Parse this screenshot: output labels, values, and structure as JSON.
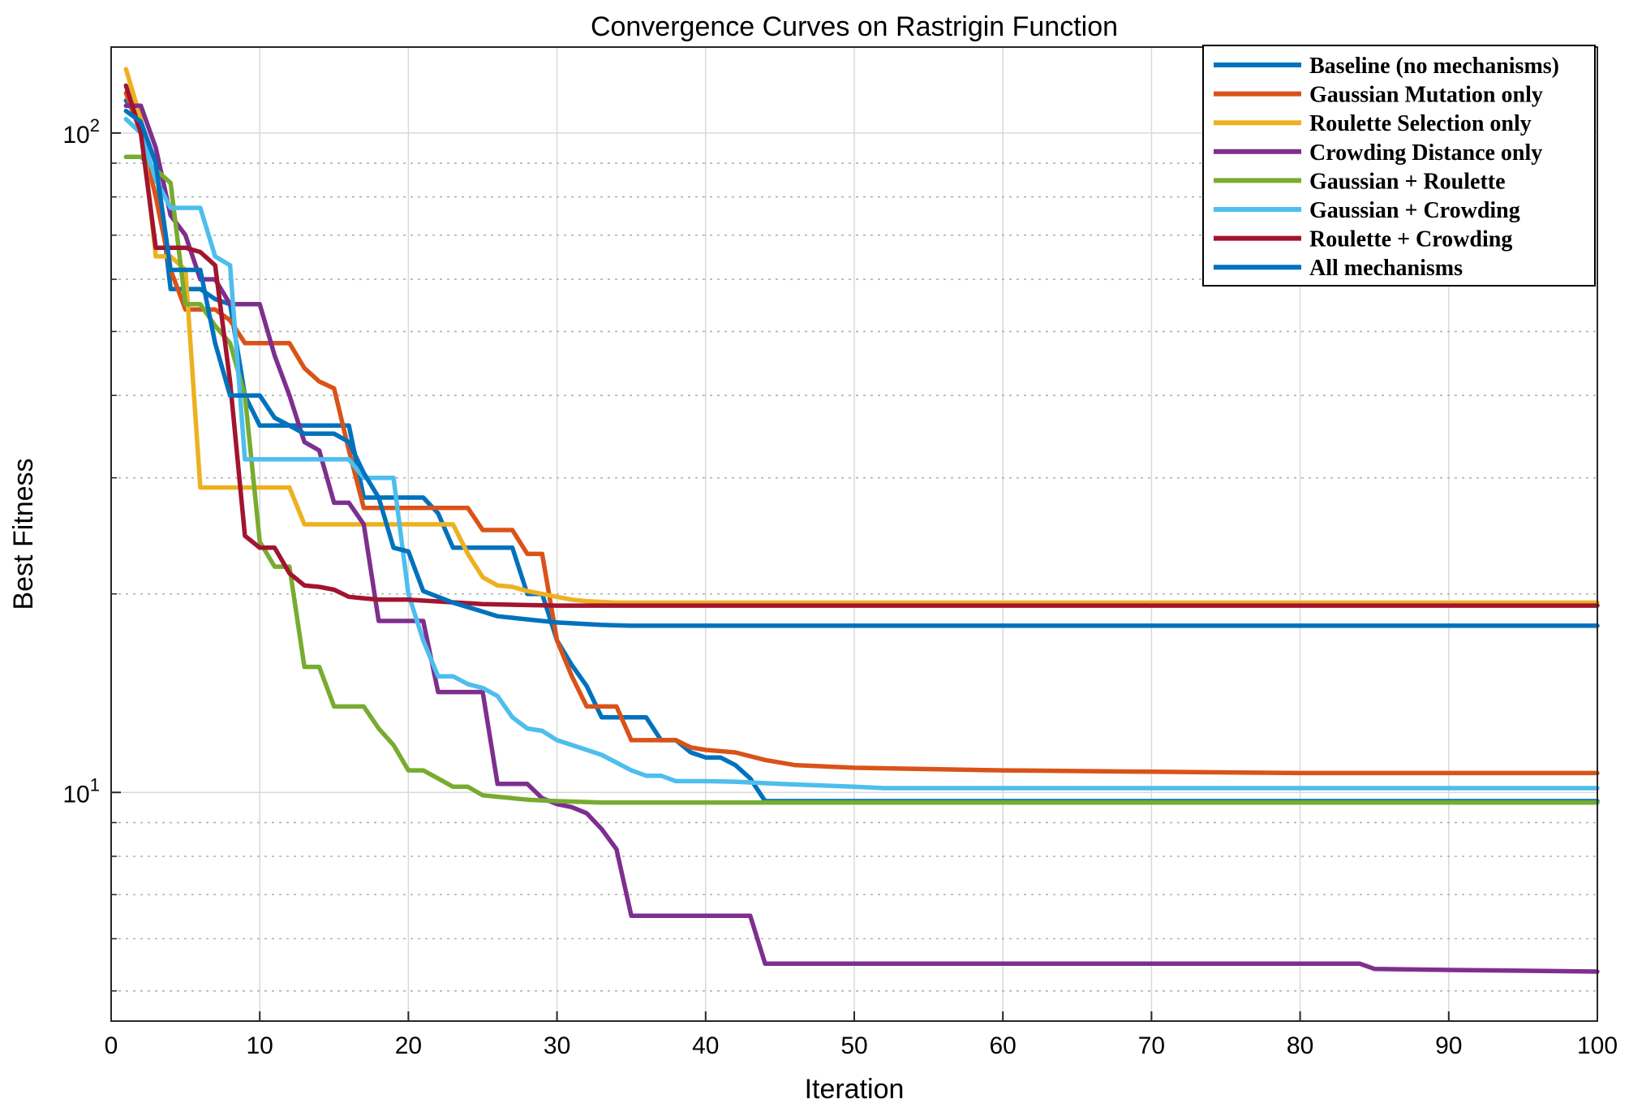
{
  "chart_data": {
    "type": "line",
    "title": "Convergence Curves on Rastrigin Function",
    "xlabel": "Iteration",
    "ylabel": "Best Fitness",
    "xlim": [
      0,
      100
    ],
    "ylim": [
      4.5,
      135
    ],
    "yscale": "log",
    "grid": true,
    "legend_position": "top-right",
    "x_ticks": [
      0,
      10,
      20,
      30,
      40,
      50,
      60,
      70,
      80,
      90,
      100
    ],
    "y_ticks": [
      {
        "value": 10,
        "base": "10",
        "exp": "1"
      },
      {
        "value": 100,
        "base": "10",
        "exp": "2"
      }
    ],
    "series": [
      {
        "name": "Baseline (no mechanisms)",
        "color": "#0072BD",
        "points": [
          [
            1,
            112
          ],
          [
            2,
            104
          ],
          [
            3,
            90
          ],
          [
            4,
            58
          ],
          [
            5,
            58
          ],
          [
            6,
            58
          ],
          [
            7,
            56
          ],
          [
            8,
            55
          ],
          [
            9,
            40
          ],
          [
            10,
            36
          ],
          [
            11,
            36
          ],
          [
            12,
            36
          ],
          [
            13,
            36
          ],
          [
            14,
            36
          ],
          [
            15,
            36
          ],
          [
            16,
            36
          ],
          [
            17,
            28
          ],
          [
            18,
            28
          ],
          [
            19,
            28
          ],
          [
            20,
            28
          ],
          [
            21,
            28
          ],
          [
            22,
            26.5
          ],
          [
            23,
            23.5
          ],
          [
            24,
            23.5
          ],
          [
            25,
            23.5
          ],
          [
            26,
            23.5
          ],
          [
            27,
            23.5
          ],
          [
            28,
            20
          ],
          [
            29,
            20
          ],
          [
            30,
            17
          ],
          [
            31,
            15.6
          ],
          [
            32,
            14.5
          ],
          [
            33,
            13
          ],
          [
            34,
            13
          ],
          [
            35,
            13
          ],
          [
            36,
            13
          ],
          [
            37,
            12
          ],
          [
            38,
            12
          ],
          [
            39,
            11.5
          ],
          [
            40,
            11.3
          ],
          [
            41,
            11.3
          ],
          [
            42,
            11
          ],
          [
            43,
            10.5
          ],
          [
            44,
            9.7
          ],
          [
            50,
            9.7
          ],
          [
            100,
            9.7
          ]
        ]
      },
      {
        "name": "Gaussian Mutation only",
        "color": "#D95319",
        "points": [
          [
            1,
            115
          ],
          [
            2,
            100
          ],
          [
            3,
            80
          ],
          [
            4,
            62
          ],
          [
            5,
            54
          ],
          [
            6,
            54
          ],
          [
            7,
            54
          ],
          [
            8,
            52
          ],
          [
            9,
            48
          ],
          [
            10,
            48
          ],
          [
            11,
            48
          ],
          [
            12,
            48
          ],
          [
            13,
            44
          ],
          [
            14,
            42
          ],
          [
            15,
            41
          ],
          [
            16,
            33
          ],
          [
            17,
            27
          ],
          [
            18,
            27
          ],
          [
            19,
            27
          ],
          [
            20,
            27
          ],
          [
            21,
            27
          ],
          [
            22,
            27
          ],
          [
            23,
            27
          ],
          [
            24,
            27
          ],
          [
            25,
            25
          ],
          [
            26,
            25
          ],
          [
            27,
            25
          ],
          [
            28,
            23
          ],
          [
            29,
            23
          ],
          [
            30,
            17
          ],
          [
            31,
            15
          ],
          [
            32,
            13.5
          ],
          [
            33,
            13.5
          ],
          [
            34,
            13.5
          ],
          [
            35,
            12
          ],
          [
            36,
            12
          ],
          [
            37,
            12
          ],
          [
            38,
            12
          ],
          [
            39,
            11.7
          ],
          [
            40,
            11.6
          ],
          [
            42,
            11.5
          ],
          [
            44,
            11.2
          ],
          [
            46,
            11.0
          ],
          [
            50,
            10.9
          ],
          [
            60,
            10.8
          ],
          [
            70,
            10.75
          ],
          [
            80,
            10.7
          ],
          [
            100,
            10.7
          ]
        ]
      },
      {
        "name": "Roulette Selection only",
        "color": "#EDB120",
        "points": [
          [
            1,
            125
          ],
          [
            2,
            105
          ],
          [
            3,
            65
          ],
          [
            4,
            65
          ],
          [
            5,
            62
          ],
          [
            6,
            29
          ],
          [
            7,
            29
          ],
          [
            8,
            29
          ],
          [
            9,
            29
          ],
          [
            10,
            29
          ],
          [
            11,
            29
          ],
          [
            12,
            29
          ],
          [
            13,
            25.5
          ],
          [
            14,
            25.5
          ],
          [
            15,
            25.5
          ],
          [
            16,
            25.5
          ],
          [
            17,
            25.5
          ],
          [
            18,
            25.5
          ],
          [
            19,
            25.5
          ],
          [
            20,
            25.5
          ],
          [
            21,
            25.5
          ],
          [
            22,
            25.5
          ],
          [
            23,
            25.5
          ],
          [
            24,
            23
          ],
          [
            25,
            21.2
          ],
          [
            26,
            20.6
          ],
          [
            27,
            20.5
          ],
          [
            28,
            20.2
          ],
          [
            29,
            20.0
          ],
          [
            30,
            19.8
          ],
          [
            31,
            19.6
          ],
          [
            32,
            19.5
          ],
          [
            34,
            19.4
          ],
          [
            40,
            19.4
          ],
          [
            100,
            19.4
          ]
        ]
      },
      {
        "name": "Crowding Distance only",
        "color": "#7E2F8E",
        "points": [
          [
            1,
            110
          ],
          [
            2,
            110
          ],
          [
            3,
            95
          ],
          [
            4,
            75
          ],
          [
            5,
            70
          ],
          [
            6,
            60
          ],
          [
            7,
            60
          ],
          [
            8,
            55
          ],
          [
            9,
            55
          ],
          [
            10,
            55
          ],
          [
            11,
            46
          ],
          [
            12,
            40
          ],
          [
            13,
            34
          ],
          [
            14,
            33
          ],
          [
            15,
            27.5
          ],
          [
            16,
            27.5
          ],
          [
            17,
            25.5
          ],
          [
            18,
            18.2
          ],
          [
            19,
            18.2
          ],
          [
            20,
            18.2
          ],
          [
            21,
            18.2
          ],
          [
            22,
            14.2
          ],
          [
            23,
            14.2
          ],
          [
            24,
            14.2
          ],
          [
            25,
            14.2
          ],
          [
            26,
            10.3
          ],
          [
            27,
            10.3
          ],
          [
            28,
            10.3
          ],
          [
            29,
            9.8
          ],
          [
            30,
            9.6
          ],
          [
            31,
            9.5
          ],
          [
            32,
            9.3
          ],
          [
            33,
            8.8
          ],
          [
            34,
            8.2
          ],
          [
            35,
            6.5
          ],
          [
            36,
            6.5
          ],
          [
            40,
            6.5
          ],
          [
            43,
            6.5
          ],
          [
            44,
            5.5
          ],
          [
            50,
            5.5
          ],
          [
            60,
            5.5
          ],
          [
            70,
            5.5
          ],
          [
            80,
            5.5
          ],
          [
            84,
            5.5
          ],
          [
            85,
            5.4
          ],
          [
            90,
            5.38
          ],
          [
            100,
            5.35
          ]
        ]
      },
      {
        "name": "Gaussian + Roulette",
        "color": "#77AC30",
        "points": [
          [
            1,
            92
          ],
          [
            2,
            92
          ],
          [
            3,
            88
          ],
          [
            4,
            84
          ],
          [
            5,
            55
          ],
          [
            6,
            55
          ],
          [
            7,
            51
          ],
          [
            8,
            48
          ],
          [
            9,
            40
          ],
          [
            10,
            24
          ],
          [
            11,
            22
          ],
          [
            12,
            22
          ],
          [
            13,
            15.5
          ],
          [
            14,
            15.5
          ],
          [
            15,
            13.5
          ],
          [
            16,
            13.5
          ],
          [
            17,
            13.5
          ],
          [
            18,
            12.5
          ],
          [
            19,
            11.8
          ],
          [
            20,
            10.8
          ],
          [
            21,
            10.8
          ],
          [
            22,
            10.5
          ],
          [
            23,
            10.2
          ],
          [
            24,
            10.2
          ],
          [
            25,
            9.9
          ],
          [
            26,
            9.85
          ],
          [
            27,
            9.8
          ],
          [
            28,
            9.75
          ],
          [
            30,
            9.7
          ],
          [
            33,
            9.65
          ],
          [
            35,
            9.65
          ],
          [
            100,
            9.65
          ]
        ]
      },
      {
        "name": "Gaussian + Crowding",
        "color": "#4DBEEE",
        "points": [
          [
            1,
            105
          ],
          [
            2,
            100
          ],
          [
            3,
            85
          ],
          [
            4,
            77
          ],
          [
            5,
            77
          ],
          [
            6,
            77
          ],
          [
            7,
            65
          ],
          [
            8,
            63
          ],
          [
            9,
            32
          ],
          [
            10,
            32
          ],
          [
            11,
            32
          ],
          [
            12,
            32
          ],
          [
            13,
            32
          ],
          [
            14,
            32
          ],
          [
            15,
            32
          ],
          [
            16,
            32
          ],
          [
            17,
            30
          ],
          [
            18,
            30
          ],
          [
            19,
            30
          ],
          [
            20,
            20
          ],
          [
            21,
            17
          ],
          [
            22,
            15
          ],
          [
            23,
            15
          ],
          [
            24,
            14.6
          ],
          [
            25,
            14.4
          ],
          [
            26,
            14
          ],
          [
            27,
            13
          ],
          [
            28,
            12.5
          ],
          [
            29,
            12.4
          ],
          [
            30,
            12
          ],
          [
            31,
            11.8
          ],
          [
            32,
            11.6
          ],
          [
            33,
            11.4
          ],
          [
            34,
            11.1
          ],
          [
            35,
            10.8
          ],
          [
            36,
            10.6
          ],
          [
            37,
            10.6
          ],
          [
            38,
            10.4
          ],
          [
            40,
            10.4
          ],
          [
            42,
            10.38
          ],
          [
            45,
            10.3
          ],
          [
            50,
            10.2
          ],
          [
            52,
            10.15
          ],
          [
            60,
            10.15
          ],
          [
            70,
            10.15
          ],
          [
            100,
            10.15
          ]
        ]
      },
      {
        "name": "Roulette + Crowding",
        "color": "#A2142F",
        "points": [
          [
            1,
            118
          ],
          [
            2,
            100
          ],
          [
            3,
            67
          ],
          [
            4,
            67
          ],
          [
            5,
            67
          ],
          [
            6,
            66
          ],
          [
            7,
            63
          ],
          [
            8,
            42
          ],
          [
            9,
            24.5
          ],
          [
            10,
            23.5
          ],
          [
            11,
            23.5
          ],
          [
            12,
            21.5
          ],
          [
            13,
            20.6
          ],
          [
            14,
            20.5
          ],
          [
            15,
            20.3
          ],
          [
            16,
            19.8
          ],
          [
            17,
            19.7
          ],
          [
            18,
            19.6
          ],
          [
            20,
            19.6
          ],
          [
            25,
            19.3
          ],
          [
            30,
            19.2
          ],
          [
            100,
            19.2
          ]
        ]
      },
      {
        "name": "All mechanisms",
        "color": "#0072BD",
        "points": [
          [
            1,
            108
          ],
          [
            2,
            104
          ],
          [
            3,
            90
          ],
          [
            4,
            62
          ],
          [
            5,
            62
          ],
          [
            6,
            62
          ],
          [
            7,
            48
          ],
          [
            8,
            40
          ],
          [
            9,
            40
          ],
          [
            10,
            40
          ],
          [
            11,
            37
          ],
          [
            12,
            36
          ],
          [
            13,
            35
          ],
          [
            14,
            35
          ],
          [
            15,
            35
          ],
          [
            16,
            34
          ],
          [
            17,
            30.5
          ],
          [
            18,
            28
          ],
          [
            19,
            23.5
          ],
          [
            20,
            23.2
          ],
          [
            21,
            20.2
          ],
          [
            22,
            19.8
          ],
          [
            23,
            19.4
          ],
          [
            24,
            19.1
          ],
          [
            25,
            18.8
          ],
          [
            26,
            18.5
          ],
          [
            27,
            18.4
          ],
          [
            28,
            18.3
          ],
          [
            30,
            18.1
          ],
          [
            33,
            17.95
          ],
          [
            35,
            17.9
          ],
          [
            40,
            17.9
          ],
          [
            100,
            17.9
          ]
        ]
      }
    ]
  }
}
